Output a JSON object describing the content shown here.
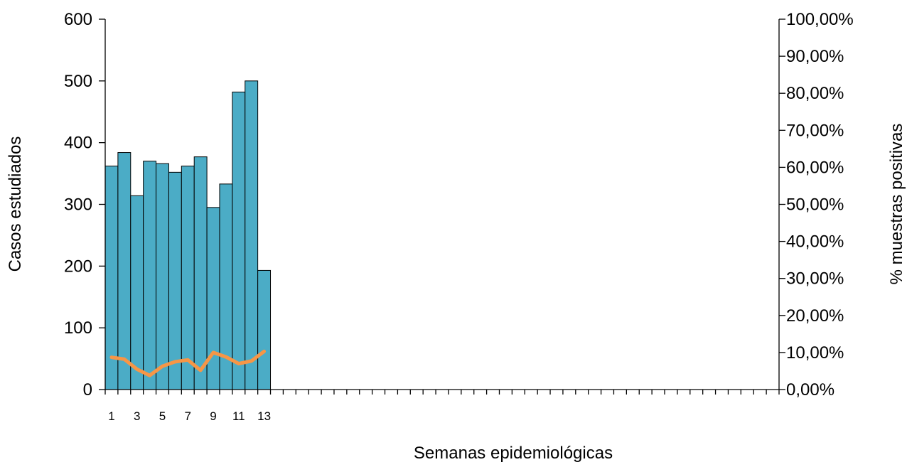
{
  "chart_data": {
    "type": "bar",
    "xlabel": "Semanas epidemiológicas",
    "ylabel": "Casos estudiados",
    "y2label": "% muestras positivas",
    "ylim": [
      0,
      600
    ],
    "yticks": [
      "0",
      "100",
      "200",
      "300",
      "400",
      "500",
      "600"
    ],
    "y2lim": [
      0,
      100
    ],
    "y2ticks": [
      "0,00%",
      "10,00%",
      "20,00%",
      "30,00%",
      "40,00%",
      "50,00%",
      "60,00%",
      "70,00%",
      "80,00%",
      "90,00%",
      "100,00%"
    ],
    "x_slots": 53,
    "xtick_labels": [
      "1",
      "3",
      "5",
      "7",
      "9",
      "11",
      "13"
    ],
    "xtick_label_weeks": [
      1,
      3,
      5,
      7,
      9,
      11,
      13
    ],
    "weeks": [
      1,
      2,
      3,
      4,
      5,
      6,
      7,
      8,
      9,
      10,
      11,
      12,
      13
    ],
    "series": [
      {
        "type": "bar",
        "axis": "left",
        "values": [
          362,
          384,
          314,
          370,
          366,
          352,
          362,
          377,
          295,
          333,
          482,
          500,
          193
        ]
      },
      {
        "type": "line",
        "axis": "right",
        "values": [
          8.7,
          8.2,
          5.5,
          3.8,
          6.3,
          7.5,
          8.0,
          5.2,
          10.0,
          8.8,
          7.0,
          7.7,
          10.3
        ]
      }
    ],
    "grid": false,
    "legend": "none",
    "colors": {
      "bar_fill": "#4bacc6",
      "bar_edge": "#000000",
      "line": "#f79646",
      "axis": "#000000"
    }
  }
}
